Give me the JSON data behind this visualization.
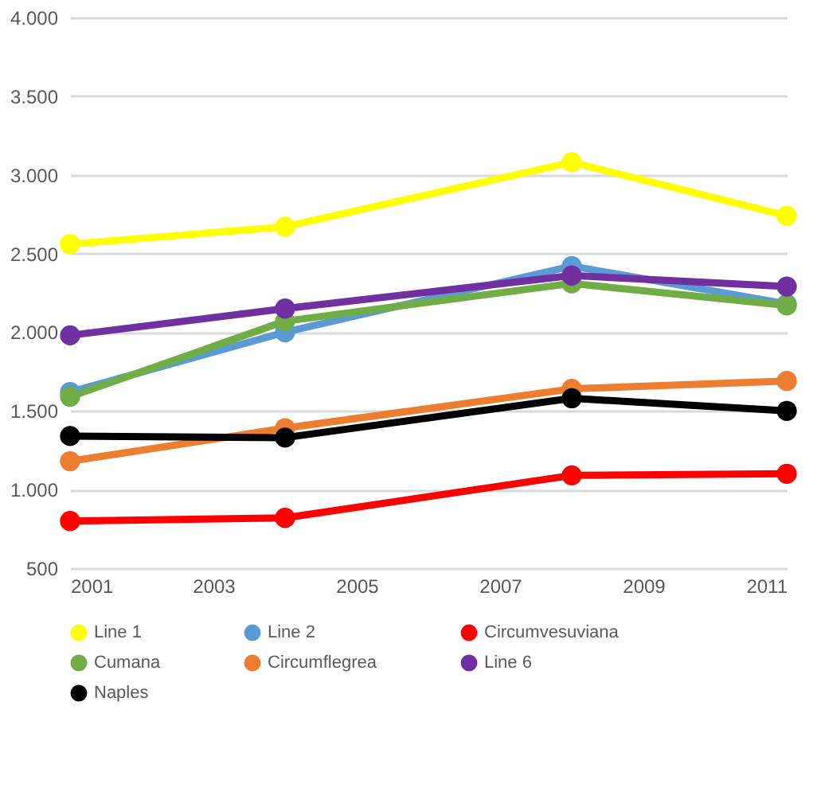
{
  "chart_data": {
    "type": "line",
    "x": [
      2001,
      2004,
      2008,
      2011
    ],
    "series": [
      {
        "name": "Line 1",
        "color": "#ffff00",
        "values": [
          2560,
          2670,
          3080,
          2740
        ]
      },
      {
        "name": "Line 2",
        "color": "#5b9bd5",
        "values": [
          1620,
          2000,
          2420,
          2180
        ]
      },
      {
        "name": "Circumvesuviana",
        "color": "#ff0000",
        "values": [
          800,
          820,
          1090,
          1100
        ]
      },
      {
        "name": "Cumana",
        "color": "#70ad47",
        "values": [
          1590,
          2070,
          2310,
          2170
        ]
      },
      {
        "name": "Circumflegrea",
        "color": "#ed7d31",
        "values": [
          1180,
          1390,
          1640,
          1690
        ]
      },
      {
        "name": "Line 6",
        "color": "#7030a0",
        "values": [
          1980,
          2150,
          2360,
          2290
        ]
      },
      {
        "name": "Naples",
        "color": "#000000",
        "values": [
          1340,
          1330,
          1580,
          1500
        ]
      }
    ],
    "xlim": [
      2001,
      2011
    ],
    "xticks": [
      2001,
      2003,
      2005,
      2007,
      2009,
      2011
    ],
    "ylim": [
      500,
      4000
    ],
    "yticks": [
      {
        "value": 500,
        "label": "500"
      },
      {
        "value": 1000,
        "label": "1.000"
      },
      {
        "value": 1500,
        "label": "1.500"
      },
      {
        "value": 2000,
        "label": "2.000"
      },
      {
        "value": 2500,
        "label": "2.500"
      },
      {
        "value": 3000,
        "label": "3.000"
      },
      {
        "value": 3500,
        "label": "3.500"
      },
      {
        "value": 4000,
        "label": "4.000"
      }
    ],
    "grid": "y",
    "legend": "bottom",
    "marker": "circle",
    "line_style": "solid"
  }
}
